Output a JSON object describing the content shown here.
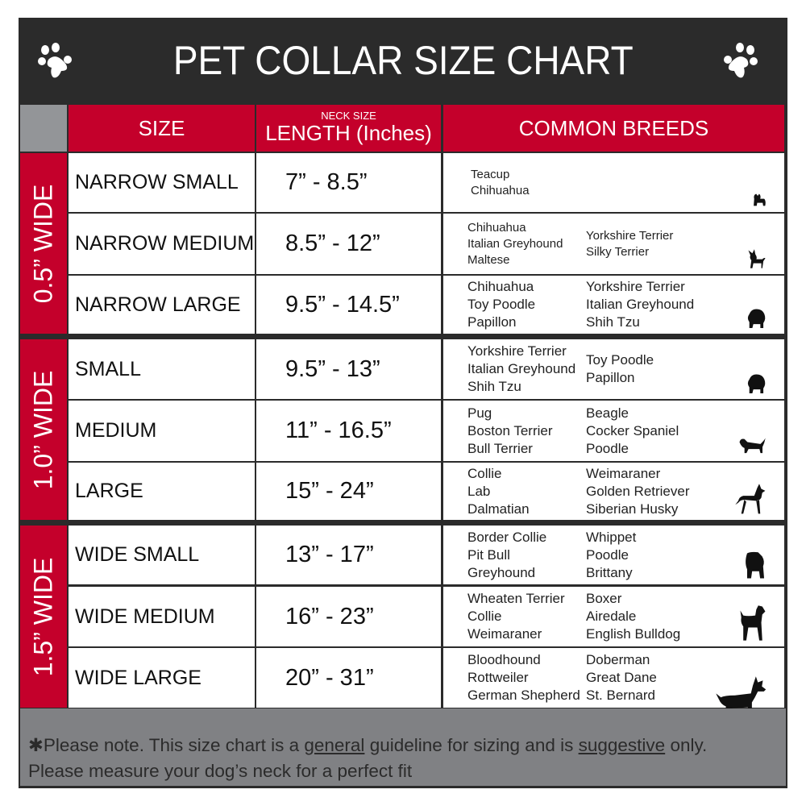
{
  "title": "PET COLLAR SIZE CHART",
  "headers": {
    "size": "SIZE",
    "length_small": "NECK SIZE",
    "length": "LENGTH (Inches)",
    "breeds": "COMMON BREEDS"
  },
  "colors": {
    "header_red": "#c4002b",
    "dark": "#2b2b2b",
    "footer_gray": "#808184"
  },
  "groups": [
    {
      "label": "0.5” WIDE",
      "rows": [
        {
          "size": "NARROW SMALL",
          "length": "7” - 8.5”",
          "breeds_col1": [
            "Teacup",
            "Chihuahua"
          ],
          "breeds_col2": [],
          "icon": "yorkie-silhouette-icon"
        },
        {
          "size": "NARROW MEDIUM",
          "length": "8.5” - 12”",
          "breeds_col1": [
            "Chihuahua",
            "Italian Greyhound",
            "Maltese"
          ],
          "breeds_col2": [
            "Yorkshire Terrier",
            "Silky Terrier"
          ],
          "icon": "chihuahua-silhouette-icon"
        },
        {
          "size": "NARROW LARGE",
          "length": "9.5” - 14.5”",
          "breeds_col1": [
            "Chihuahua",
            "Toy Poodle",
            "Papillon"
          ],
          "breeds_col2": [
            "Yorkshire Terrier",
            "Italian Greyhound",
            "Shih Tzu"
          ],
          "icon": "pomeranian-silhouette-icon"
        }
      ]
    },
    {
      "label": "1.0” WIDE",
      "rows": [
        {
          "size": "SMALL",
          "length": "9.5” - 13”",
          "breeds_col1": [
            "Yorkshire Terrier",
            "Italian Greyhound",
            "Shih Tzu"
          ],
          "breeds_col2": [
            "Toy Poodle",
            "Papillon"
          ],
          "icon": "pomeranian-silhouette-icon"
        },
        {
          "size": "MEDIUM",
          "length": "11” - 16.5”",
          "breeds_col1": [
            "Pug",
            "Boston Terrier",
            "Bull Terrier"
          ],
          "breeds_col2": [
            "Beagle",
            "Cocker Spaniel",
            "Poodle"
          ],
          "icon": "dachshund-silhouette-icon"
        },
        {
          "size": "LARGE",
          "length": "15” - 24”",
          "breeds_col1": [
            "Collie",
            "Lab",
            "Dalmatian"
          ],
          "breeds_col2": [
            "Weimaraner",
            "Golden Retriever",
            "Siberian Husky"
          ],
          "icon": "shepherd-silhouette-icon"
        }
      ]
    },
    {
      "label": "1.5” WIDE",
      "rows": [
        {
          "size": "WIDE SMALL",
          "length": "13” - 17”",
          "breeds_col1": [
            "Border Collie",
            "Pit Bull",
            "Greyhound"
          ],
          "breeds_col2": [
            "Whippet",
            "Poodle",
            "Brittany"
          ],
          "icon": "bulldog-silhouette-icon"
        },
        {
          "size": "WIDE MEDIUM",
          "length": "16” - 23”",
          "breeds_col1": [
            "Wheaten Terrier",
            "Collie",
            "Weimaraner"
          ],
          "breeds_col2": [
            "Boxer",
            "Airedale",
            "English Bulldog"
          ],
          "icon": "pitbull-silhouette-icon"
        },
        {
          "size": "WIDE LARGE",
          "length": "20” - 31”",
          "breeds_col1": [
            "Bloodhound",
            "Rottweiler",
            "German Shepherd"
          ],
          "breeds_col2": [
            "Doberman",
            "Great Dane",
            "St. Bernard"
          ],
          "icon": "doberman-silhouette-icon"
        }
      ]
    }
  ],
  "footer": {
    "prefix": "✱Please note. This size chart is a",
    "general": "general",
    "middle": "guideline for sizing and is",
    "suggestive": "suggestive",
    "suffix": "only.",
    "line2": "Please measure your dog’s neck for a perfect fit"
  }
}
